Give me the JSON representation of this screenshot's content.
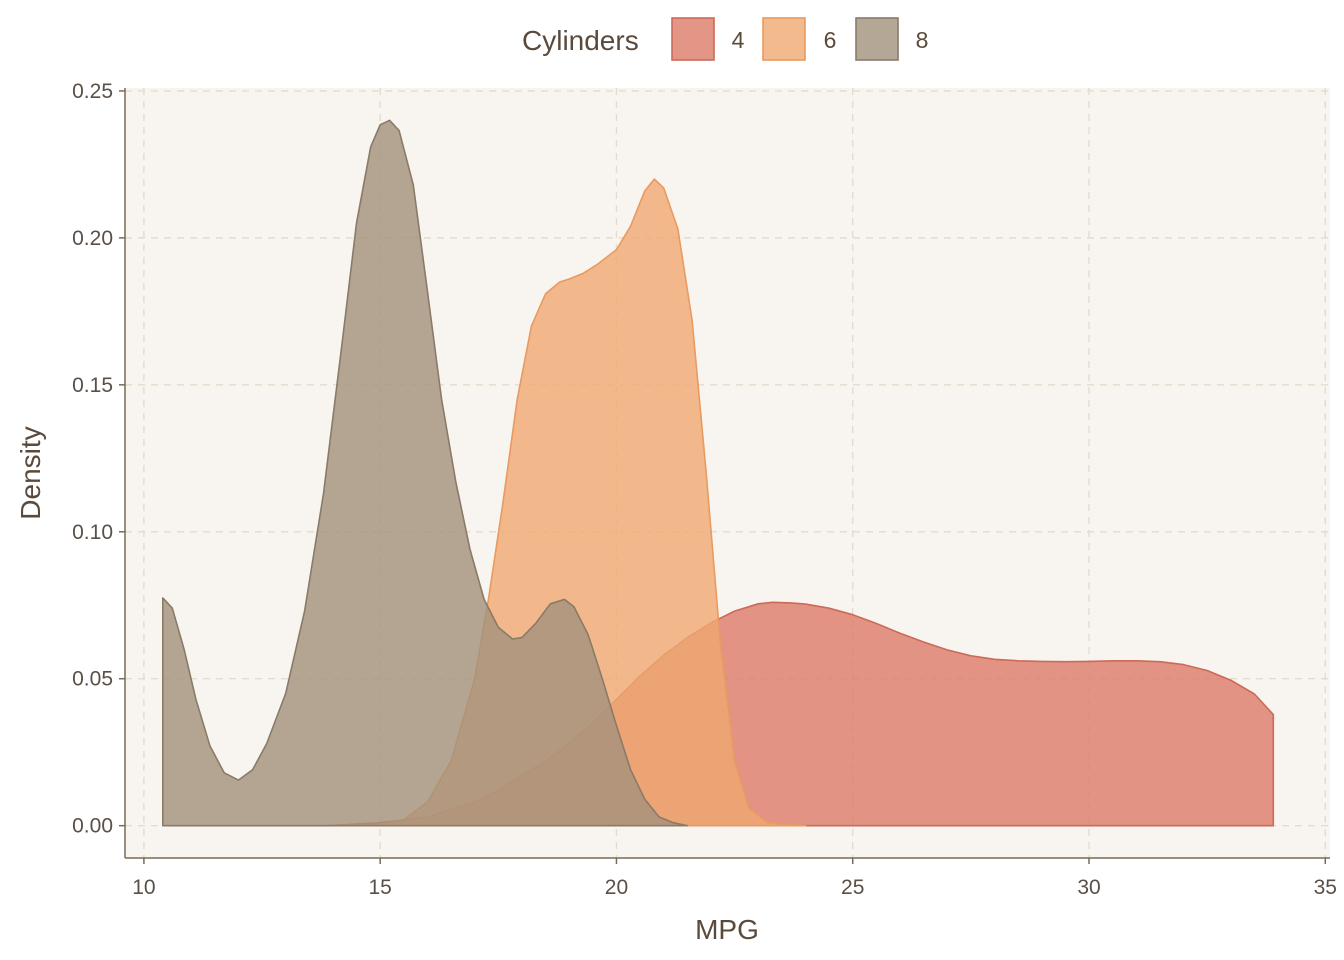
{
  "chart_data": {
    "type": "area",
    "xlabel": "MPG",
    "ylabel": "Density",
    "xlim": [
      9.6,
      35.1
    ],
    "ylim": [
      -0.011,
      0.251
    ],
    "x_ticks": [
      "10",
      "15",
      "20",
      "25",
      "30",
      "35"
    ],
    "y_ticks": [
      "0.00",
      "0.05",
      "0.10",
      "0.15",
      "0.20",
      "0.25"
    ],
    "grid": true,
    "legend": {
      "title": "Cylinders",
      "placement": "top",
      "entries": [
        "4",
        "6",
        "8"
      ]
    },
    "series": [
      {
        "name": "4",
        "fill": "#dc7a68",
        "stroke": "#cc6a58",
        "points": [
          [
            13.9,
            0.0
          ],
          [
            15.0,
            0.001
          ],
          [
            16.0,
            0.003
          ],
          [
            17.0,
            0.008
          ],
          [
            17.5,
            0.012
          ],
          [
            18.0,
            0.017
          ],
          [
            18.5,
            0.022
          ],
          [
            19.0,
            0.028
          ],
          [
            19.5,
            0.035
          ],
          [
            20.0,
            0.043
          ],
          [
            20.5,
            0.051
          ],
          [
            21.0,
            0.058
          ],
          [
            21.5,
            0.064
          ],
          [
            22.0,
            0.069
          ],
          [
            22.5,
            0.073
          ],
          [
            23.0,
            0.0755
          ],
          [
            23.3,
            0.076
          ],
          [
            23.7,
            0.0758
          ],
          [
            24.0,
            0.0754
          ],
          [
            24.5,
            0.074
          ],
          [
            25.0,
            0.0718
          ],
          [
            25.5,
            0.0688
          ],
          [
            26.0,
            0.0655
          ],
          [
            26.5,
            0.0625
          ],
          [
            27.0,
            0.0598
          ],
          [
            27.5,
            0.0578
          ],
          [
            28.0,
            0.0566
          ],
          [
            28.5,
            0.0561
          ],
          [
            29.0,
            0.0559
          ],
          [
            29.5,
            0.0558
          ],
          [
            30.0,
            0.0559
          ],
          [
            30.5,
            0.0561
          ],
          [
            31.0,
            0.0561
          ],
          [
            31.5,
            0.0558
          ],
          [
            32.0,
            0.0548
          ],
          [
            32.5,
            0.0528
          ],
          [
            33.0,
            0.0495
          ],
          [
            33.5,
            0.0448
          ],
          [
            33.9,
            0.0378
          ]
        ]
      },
      {
        "name": "6",
        "fill": "#f0a972",
        "stroke": "#e89a60",
        "points": [
          [
            14.0,
            0.0
          ],
          [
            15.0,
            0.0005
          ],
          [
            15.5,
            0.002
          ],
          [
            16.0,
            0.008
          ],
          [
            16.5,
            0.022
          ],
          [
            17.0,
            0.05
          ],
          [
            17.3,
            0.078
          ],
          [
            17.6,
            0.11
          ],
          [
            17.9,
            0.145
          ],
          [
            18.2,
            0.17
          ],
          [
            18.5,
            0.181
          ],
          [
            18.8,
            0.185
          ],
          [
            19.0,
            0.186
          ],
          [
            19.3,
            0.188
          ],
          [
            19.6,
            0.191
          ],
          [
            20.0,
            0.196
          ],
          [
            20.3,
            0.204
          ],
          [
            20.6,
            0.216
          ],
          [
            20.8,
            0.22
          ],
          [
            21.0,
            0.217
          ],
          [
            21.3,
            0.203
          ],
          [
            21.6,
            0.172
          ],
          [
            21.9,
            0.12
          ],
          [
            22.2,
            0.062
          ],
          [
            22.5,
            0.022
          ],
          [
            22.8,
            0.006
          ],
          [
            23.2,
            0.001
          ],
          [
            24.0,
            0.0
          ]
        ]
      },
      {
        "name": "8",
        "fill": "#a2917c",
        "stroke": "#8a7a68",
        "points": [
          [
            10.4,
            0.0
          ],
          [
            10.4,
            0.0775
          ],
          [
            10.6,
            0.074
          ],
          [
            10.85,
            0.06
          ],
          [
            11.1,
            0.043
          ],
          [
            11.4,
            0.027
          ],
          [
            11.7,
            0.018
          ],
          [
            12.0,
            0.0155
          ],
          [
            12.3,
            0.019
          ],
          [
            12.6,
            0.028
          ],
          [
            13.0,
            0.045
          ],
          [
            13.4,
            0.073
          ],
          [
            13.8,
            0.113
          ],
          [
            14.2,
            0.165
          ],
          [
            14.5,
            0.205
          ],
          [
            14.8,
            0.231
          ],
          [
            15.0,
            0.2385
          ],
          [
            15.2,
            0.24
          ],
          [
            15.4,
            0.2365
          ],
          [
            15.7,
            0.218
          ],
          [
            16.0,
            0.182
          ],
          [
            16.3,
            0.145
          ],
          [
            16.6,
            0.117
          ],
          [
            16.9,
            0.094
          ],
          [
            17.2,
            0.077
          ],
          [
            17.5,
            0.0675
          ],
          [
            17.8,
            0.0635
          ],
          [
            18.0,
            0.064
          ],
          [
            18.3,
            0.069
          ],
          [
            18.6,
            0.0755
          ],
          [
            18.9,
            0.077
          ],
          [
            19.1,
            0.0745
          ],
          [
            19.4,
            0.065
          ],
          [
            19.7,
            0.05
          ],
          [
            20.0,
            0.034
          ],
          [
            20.3,
            0.019
          ],
          [
            20.6,
            0.009
          ],
          [
            20.9,
            0.003
          ],
          [
            21.2,
            0.001
          ],
          [
            21.5,
            0.0
          ]
        ]
      }
    ]
  }
}
